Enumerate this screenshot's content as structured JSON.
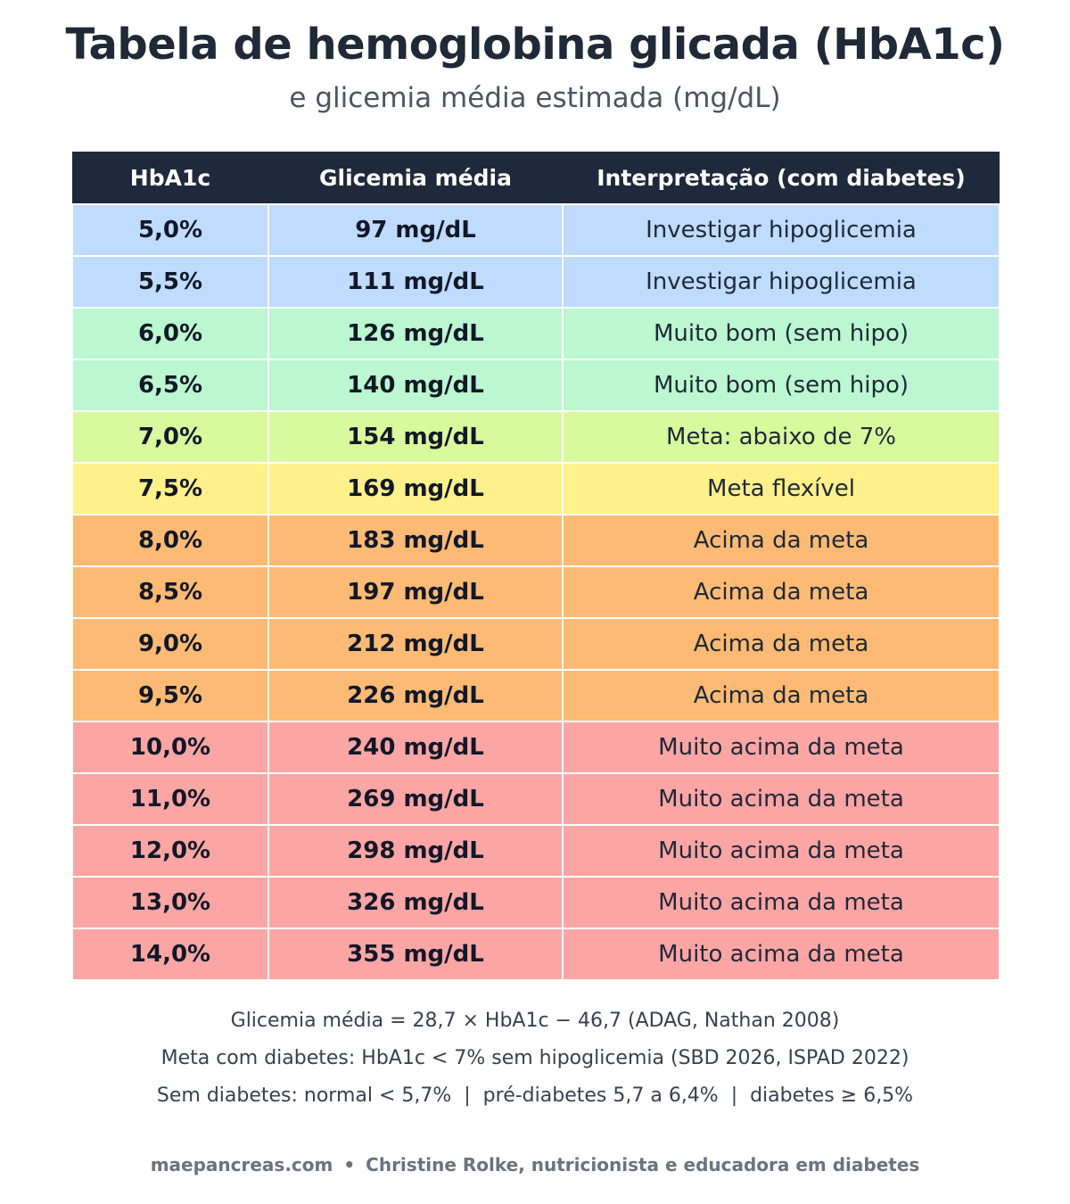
{
  "title": "Tabela de hemoglobina glicada (HbA1c)",
  "subtitle": "e glicemia média estimada (mg/dL)",
  "table": {
    "headers": [
      "HbA1c",
      "Glicemia média",
      "Interpretação (com diabetes)"
    ],
    "rows": [
      {
        "hba1c": "5,0%",
        "glicemia": "97 mg/dL",
        "interp": "Investigar hipoglicemia",
        "color": "#bfdbfe"
      },
      {
        "hba1c": "5,5%",
        "glicemia": "111 mg/dL",
        "interp": "Investigar hipoglicemia",
        "color": "#bfdbfe"
      },
      {
        "hba1c": "6,0%",
        "glicemia": "126 mg/dL",
        "interp": "Muito bom (sem hipo)",
        "color": "#bbf7d0"
      },
      {
        "hba1c": "6,5%",
        "glicemia": "140 mg/dL",
        "interp": "Muito bom (sem hipo)",
        "color": "#bbf7d0"
      },
      {
        "hba1c": "7,0%",
        "glicemia": "154 mg/dL",
        "interp": "Meta: abaixo de 7%",
        "color": "#d9f99d"
      },
      {
        "hba1c": "7,5%",
        "glicemia": "169 mg/dL",
        "interp": "Meta flexível",
        "color": "#fef08a"
      },
      {
        "hba1c": "8,0%",
        "glicemia": "183 mg/dL",
        "interp": "Acima da meta",
        "color": "#fdba74"
      },
      {
        "hba1c": "8,5%",
        "glicemia": "197 mg/dL",
        "interp": "Acima da meta",
        "color": "#fdba74"
      },
      {
        "hba1c": "9,0%",
        "glicemia": "212 mg/dL",
        "interp": "Acima da meta",
        "color": "#fdba74"
      },
      {
        "hba1c": "9,5%",
        "glicemia": "226 mg/dL",
        "interp": "Acima da meta",
        "color": "#fdba74"
      },
      {
        "hba1c": "10,0%",
        "glicemia": "240 mg/dL",
        "interp": "Muito acima da meta",
        "color": "#fca5a5"
      },
      {
        "hba1c": "11,0%",
        "glicemia": "269 mg/dL",
        "interp": "Muito acima da meta",
        "color": "#fca5a5"
      },
      {
        "hba1c": "12,0%",
        "glicemia": "298 mg/dL",
        "interp": "Muito acima da meta",
        "color": "#fca5a5"
      },
      {
        "hba1c": "13,0%",
        "glicemia": "326 mg/dL",
        "interp": "Muito acima da meta",
        "color": "#fca5a5"
      },
      {
        "hba1c": "14,0%",
        "glicemia": "355 mg/dL",
        "interp": "Muito acima da meta",
        "color": "#fca5a5"
      }
    ]
  },
  "notes": [
    "Glicemia média = 28,7 × HbA1c − 46,7 (ADAG, Nathan 2008)",
    "Meta com diabetes: HbA1c < 7% sem hipoglicemia (SBD 2026, ISPAD 2022)",
    "Sem diabetes: normal < 5,7%  |  pré-diabetes 5,7 a 6,4%  |  diabetes ≥ 6,5%"
  ],
  "footer": {
    "site": "maepancreas.com",
    "separator": "•",
    "author": "Christine Rolke, nutricionista e educadora em diabetes"
  },
  "colors": {
    "header_bg": "#1e293b",
    "title": "#1f2937",
    "subtitle": "#4b5563"
  }
}
